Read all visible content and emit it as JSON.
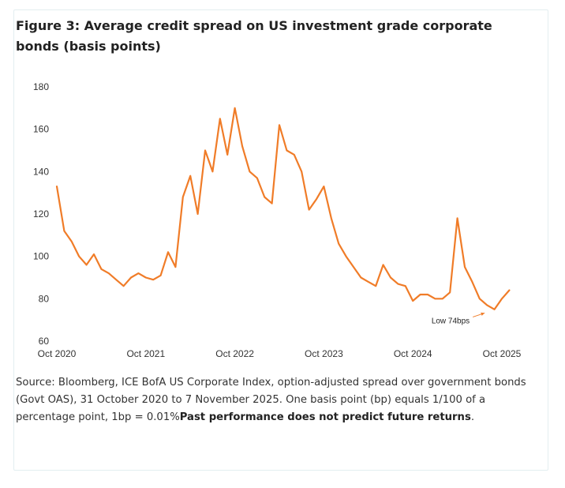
{
  "figure": {
    "title": "Figure 3: Average credit spread on US investment grade corporate bonds (basis points)",
    "source_text": "Source: Bloomberg, ICE BofA US Corporate Index, option-adjusted spread over government bonds (Govt OAS), 31 October 2020 to 7 November 2025. One basis point (bp) equals 1/100 of a percentage point, 1bp = 0.01%",
    "disclaimer": "Past performance does not predict future returns",
    "disclaimer_suffix": "."
  },
  "chart_data": {
    "type": "line",
    "title": "Figure 3: Average credit spread on US investment grade corporate bonds (basis points)",
    "xlabel": "",
    "ylabel": "",
    "ylim": [
      60,
      180
    ],
    "yticks": [
      60,
      80,
      100,
      120,
      140,
      160,
      180
    ],
    "xlim": [
      "2020-10",
      "2025-10"
    ],
    "xticks": [
      "Oct 2020",
      "Oct 2021",
      "Oct 2022",
      "Oct 2023",
      "Oct 2024",
      "Oct 2025"
    ],
    "grid": false,
    "legend": "none",
    "line_color": "#f07c28",
    "annotation": {
      "text": "Low 74bps",
      "x": "2025-08",
      "y": 74
    },
    "series": [
      {
        "x": [
          "2020-10",
          "2020-11",
          "2020-12",
          "2021-01",
          "2021-02",
          "2021-03",
          "2021-04",
          "2021-05",
          "2021-06",
          "2021-07",
          "2021-08",
          "2021-09",
          "2021-10",
          "2021-11",
          "2021-12",
          "2022-01",
          "2022-02",
          "2022-03",
          "2022-04",
          "2022-05",
          "2022-06",
          "2022-07",
          "2022-08",
          "2022-09",
          "2022-10",
          "2022-11",
          "2022-12",
          "2023-01",
          "2023-02",
          "2023-03",
          "2023-04",
          "2023-05",
          "2023-06",
          "2023-07",
          "2023-08",
          "2023-09",
          "2023-10",
          "2023-11",
          "2023-12",
          "2024-01",
          "2024-02",
          "2024-03",
          "2024-04",
          "2024-05",
          "2024-06",
          "2024-07",
          "2024-08",
          "2024-09",
          "2024-10",
          "2024-11",
          "2024-12",
          "2025-01",
          "2025-02",
          "2025-03",
          "2025-04",
          "2025-05",
          "2025-06",
          "2025-07",
          "2025-08",
          "2025-09",
          "2025-10",
          "2025-11"
        ],
        "values": [
          133,
          112,
          107,
          100,
          96,
          101,
          94,
          92,
          89,
          86,
          90,
          92,
          90,
          89,
          91,
          102,
          95,
          128,
          138,
          120,
          150,
          140,
          165,
          148,
          170,
          152,
          140,
          137,
          128,
          125,
          162,
          150,
          148,
          140,
          122,
          127,
          133,
          118,
          106,
          100,
          95,
          90,
          88,
          86,
          96,
          90,
          87,
          86,
          79,
          82,
          82,
          80,
          80,
          83,
          118,
          95,
          88,
          80,
          77,
          75,
          80,
          84
        ]
      }
    ]
  }
}
